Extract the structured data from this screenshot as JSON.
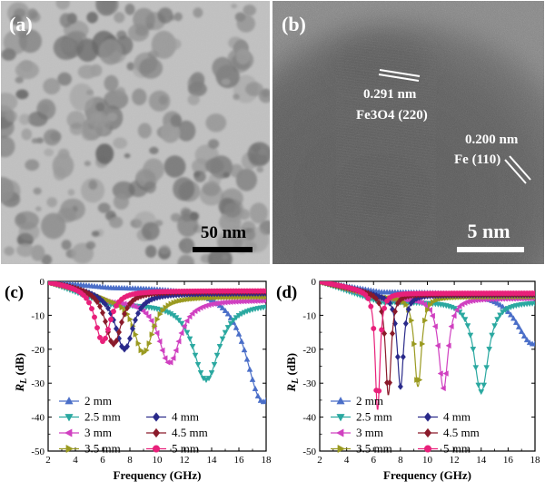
{
  "panels": {
    "a": {
      "label": "(a)",
      "scalebar": "50 nm"
    },
    "b": {
      "label": "(b)",
      "fringe1": {
        "spacing": "0.291 nm",
        "plane": "Fe3O4 (220)"
      },
      "fringe2": {
        "spacing": "0.200 nm",
        "plane": "Fe (110)"
      },
      "scalebar": "5 nm"
    }
  },
  "colors": {
    "2 mm": "#4a6ec8",
    "2.5 mm": "#2aa8a0",
    "3 mm": "#d040c0",
    "3.5 mm": "#9a9a20",
    "4 mm": "#2a2a8a",
    "4.5 mm": "#8a1a2a",
    "5 mm": "#e8207a"
  },
  "chart_data": [
    {
      "panel": "(c)",
      "type": "line",
      "xlabel": "Frequency (GHz)",
      "ylabel_main": "R",
      "ylabel_sub": "L",
      "ylabel_unit": " (dB)",
      "xlim": [
        2,
        18
      ],
      "ylim": [
        -50,
        0
      ],
      "xticks": [
        2,
        4,
        6,
        8,
        10,
        12,
        14,
        16,
        18
      ],
      "yticks": [
        0,
        -10,
        -20,
        -30,
        -40,
        -50
      ],
      "legend": [
        "2 mm",
        "2.5 mm",
        "3 mm",
        "3.5 mm",
        "4 mm",
        "4.5 mm",
        "5 mm"
      ],
      "series": [
        {
          "name": "2 mm",
          "marker": "triangle-up",
          "fmin": 17.8,
          "rmin": -35.5,
          "base": -1.5,
          "w": 2.2,
          "pw": 1.8
        },
        {
          "name": "2.5 mm",
          "marker": "triangle-down",
          "fmin": 13.6,
          "rmin": -29.0,
          "base": -6.5,
          "w": 1.6,
          "pw": 1.8
        },
        {
          "name": "3 mm",
          "marker": "triangle-left",
          "fmin": 10.9,
          "rmin": -24.0,
          "base": -5.5,
          "w": 1.35,
          "pw": 1.8
        },
        {
          "name": "3.5 mm",
          "marker": "triangle-right",
          "fmin": 9.0,
          "rmin": -21.0,
          "base": -4.5,
          "w": 1.2,
          "pw": 1.8
        },
        {
          "name": "4 mm",
          "marker": "diamond",
          "fmin": 7.6,
          "rmin": -20.0,
          "base": -3.5,
          "w": 1.1,
          "pw": 1.8
        },
        {
          "name": "4.5 mm",
          "marker": "diamond",
          "fmin": 6.8,
          "rmin": -18.5,
          "base": -3.0,
          "w": 1.0,
          "pw": 1.8
        },
        {
          "name": "5 mm",
          "marker": "circle",
          "fmin": 6.0,
          "rmin": -18.0,
          "base": -2.8,
          "w": 0.95,
          "pw": 1.8
        }
      ]
    },
    {
      "panel": "(d)",
      "type": "line",
      "xlabel": "Frequency (GHz)",
      "ylabel_main": "R",
      "ylabel_sub": "L",
      "ylabel_unit": " (dB)",
      "xlim": [
        2,
        18
      ],
      "ylim": [
        -50,
        0
      ],
      "xticks": [
        2,
        4,
        6,
        8,
        10,
        12,
        14,
        16,
        18
      ],
      "yticks": [
        0,
        -10,
        -20,
        -30,
        -40,
        -50
      ],
      "legend": [
        "2 mm",
        "2.5 mm",
        "3 mm",
        "3.5 mm",
        "4 mm",
        "4.5 mm",
        "5 mm"
      ],
      "series": [
        {
          "name": "2 mm",
          "marker": "triangle-up",
          "fmin": 17.9,
          "rmin": -18.5,
          "base": -3.0,
          "w": 2.2,
          "pw": 1.8
        },
        {
          "name": "2.5 mm",
          "marker": "triangle-down",
          "fmin": 14.0,
          "rmin": -32.5,
          "base": -6.0,
          "w": 0.9,
          "pw": 1.3
        },
        {
          "name": "3 mm",
          "marker": "triangle-left",
          "fmin": 11.2,
          "rmin": -31.5,
          "base": -5.0,
          "w": 0.6,
          "pw": 1.2
        },
        {
          "name": "3.5 mm",
          "marker": "triangle-right",
          "fmin": 9.3,
          "rmin": -31.0,
          "base": -4.5,
          "w": 0.45,
          "pw": 1.1
        },
        {
          "name": "4 mm",
          "marker": "diamond",
          "fmin": 8.0,
          "rmin": -31.0,
          "base": -4.0,
          "w": 0.4,
          "pw": 1.1
        },
        {
          "name": "4.5 mm",
          "marker": "diamond",
          "fmin": 7.1,
          "rmin": -33.5,
          "base": -3.8,
          "w": 0.35,
          "pw": 1.05
        },
        {
          "name": "5 mm",
          "marker": "circle",
          "fmin": 6.3,
          "rmin": -38.0,
          "base": -3.5,
          "w": 0.3,
          "pw": 1.0
        }
      ]
    }
  ]
}
